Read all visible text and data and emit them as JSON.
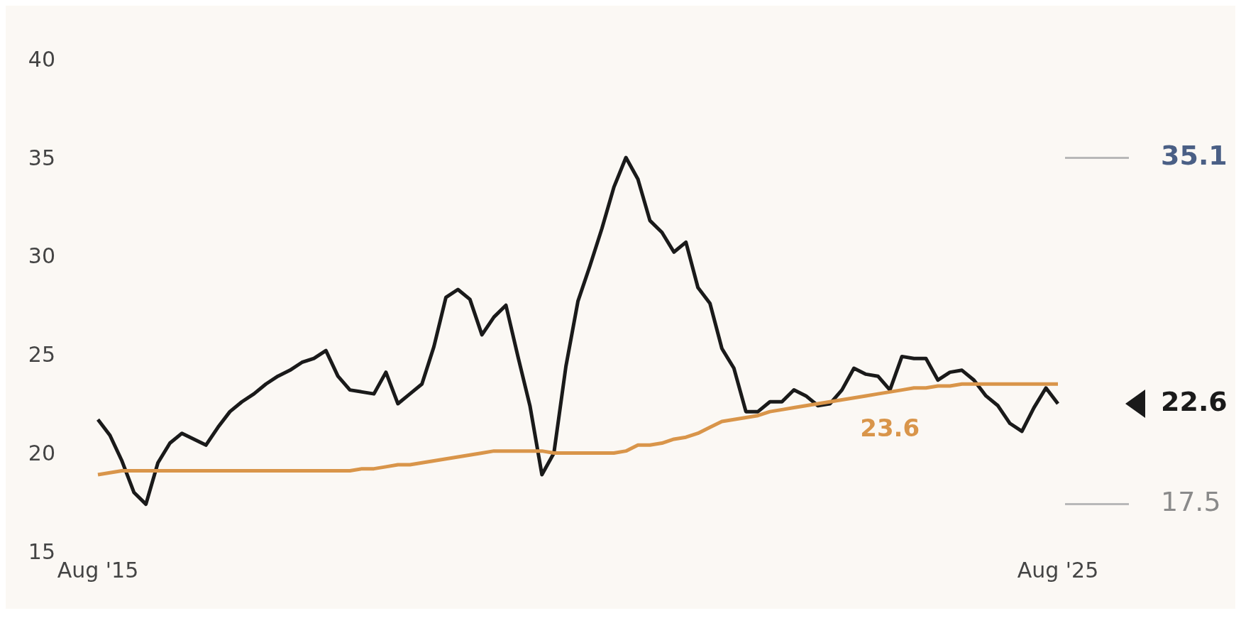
{
  "chart_data": {
    "type": "line",
    "categories": [
      "Aug '15",
      null,
      null,
      null,
      null,
      null,
      null,
      null,
      null,
      null,
      null,
      null,
      null,
      null,
      null,
      null,
      null,
      null,
      null,
      null,
      null,
      null,
      null,
      null,
      null,
      null,
      null,
      null,
      null,
      null,
      null,
      null,
      null,
      null,
      null,
      null,
      null,
      null,
      null,
      null,
      null,
      null,
      null,
      null,
      null,
      null,
      null,
      null,
      null,
      null,
      null,
      null,
      null,
      null,
      null,
      null,
      null,
      null,
      null,
      null,
      null,
      null,
      null,
      null,
      null,
      null,
      null,
      null,
      null,
      null,
      null,
      null,
      null,
      null,
      null,
      null,
      null,
      null,
      null,
      null,
      "Aug '25"
    ],
    "series": [
      {
        "color": "#d9954a",
        "values": [
          19.0,
          19.1,
          19.2,
          19.2,
          19.2,
          19.2,
          19.2,
          19.2,
          19.2,
          19.2,
          19.2,
          19.2,
          19.2,
          19.2,
          19.2,
          19.2,
          19.2,
          19.2,
          19.2,
          19.2,
          19.2,
          19.2,
          19.3,
          19.3,
          19.4,
          19.5,
          19.5,
          19.6,
          19.7,
          19.8,
          19.9,
          20.0,
          20.1,
          20.2,
          20.2,
          20.2,
          20.2,
          20.2,
          20.1,
          20.1,
          20.1,
          20.1,
          20.1,
          20.1,
          20.2,
          20.5,
          20.5,
          20.6,
          20.8,
          20.9,
          21.1,
          21.4,
          21.7,
          21.8,
          21.9,
          22.0,
          22.2,
          22.3,
          22.4,
          22.5,
          22.6,
          22.7,
          22.8,
          22.9,
          23.0,
          23.1,
          23.2,
          23.3,
          23.4,
          23.4,
          23.5,
          23.5,
          23.6,
          23.6,
          23.6,
          23.6,
          23.6,
          23.6,
          23.6,
          23.6,
          23.6
        ]
      },
      {
        "color": "#1a1a1a",
        "values": [
          21.8,
          21.0,
          19.7,
          18.1,
          17.5,
          19.6,
          20.6,
          21.1,
          20.8,
          20.5,
          21.4,
          22.2,
          22.7,
          23.1,
          23.6,
          24.0,
          24.3,
          24.7,
          24.9,
          25.3,
          24.0,
          23.3,
          23.2,
          23.1,
          24.2,
          22.6,
          23.1,
          23.6,
          25.5,
          28.0,
          28.4,
          27.9,
          26.1,
          27.0,
          27.6,
          25.0,
          22.5,
          19.0,
          20.1,
          24.5,
          27.8,
          29.6,
          31.5,
          33.6,
          35.1,
          34.0,
          31.9,
          31.3,
          30.3,
          30.8,
          28.5,
          27.7,
          25.4,
          24.4,
          22.2,
          22.2,
          22.7,
          22.7,
          23.3,
          23.0,
          22.5,
          22.6,
          23.3,
          24.4,
          24.1,
          24.0,
          23.3,
          25.0,
          24.9,
          24.9,
          23.8,
          24.2,
          24.3,
          23.8,
          23.0,
          22.5,
          21.6,
          21.2,
          22.4,
          23.4,
          22.6
        ]
      }
    ],
    "ylim": [
      15,
      40
    ],
    "yticks": [
      15,
      20,
      25,
      30,
      35,
      40
    ],
    "grid": false,
    "legend": false,
    "annotations": [
      "23.6",
      "35.1",
      "22.6",
      "17.5"
    ]
  }
}
